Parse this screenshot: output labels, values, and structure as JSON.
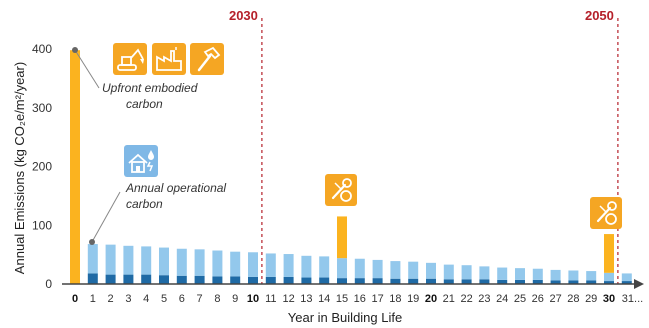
{
  "chart_data": {
    "type": "bar",
    "ylabel": "Annual Emissions (kg CO₂e/m²/year)",
    "xlabel": "Year in Building Life",
    "ylim": [
      0,
      420
    ],
    "yticks": [
      0,
      100,
      200,
      300,
      400
    ],
    "grid": false,
    "categories": [
      "0",
      "1",
      "2",
      "3",
      "4",
      "5",
      "6",
      "7",
      "8",
      "9",
      "10",
      "11",
      "12",
      "13",
      "14",
      "15",
      "16",
      "17",
      "18",
      "19",
      "20",
      "21",
      "22",
      "23",
      "24",
      "25",
      "26",
      "27",
      "28",
      "29",
      "30",
      "31..."
    ],
    "bold_categories": [
      "0",
      "10",
      "20",
      "30"
    ],
    "series": [
      {
        "values": [
          0,
          18,
          16,
          16,
          16,
          15,
          14,
          14,
          13,
          13,
          12,
          12,
          12,
          11,
          11,
          10,
          10,
          10,
          9,
          9,
          9,
          8,
          8,
          8,
          7,
          7,
          7,
          6,
          6,
          6,
          5,
          5
        ]
      },
      {
        "values": [
          0,
          50,
          51,
          49,
          48,
          47,
          46,
          45,
          44,
          42,
          42,
          40,
          39,
          37,
          36,
          34,
          33,
          31,
          30,
          29,
          27,
          25,
          24,
          22,
          21,
          20,
          19,
          18,
          17,
          16,
          14,
          13
        ]
      },
      {
        "values": [
          398,
          0,
          0,
          0,
          0,
          0,
          0,
          0,
          0,
          0,
          0,
          0,
          0,
          0,
          0,
          71,
          0,
          0,
          0,
          0,
          0,
          0,
          0,
          0,
          0,
          0,
          0,
          0,
          0,
          0,
          66,
          0
        ]
      }
    ],
    "colors": {
      "operational_dark": "#1f6aa5",
      "operational_light": "#93c8ec",
      "embodied": "#fbb31f",
      "milestone": "#b5202a",
      "icon_box": "#f5a623",
      "operational_icon_box": "#7fb8e6"
    },
    "milestones": [
      {
        "label": "2030",
        "year": 10.5
      },
      {
        "label": "2050",
        "year": 30.5
      }
    ],
    "annotations": [
      {
        "lines": [
          "Upfront embodied",
          "carbon"
        ],
        "year": 0,
        "value": 395
      },
      {
        "lines": [
          "Annual operational",
          "carbon"
        ],
        "year": 1,
        "value": 68
      }
    ],
    "icons": {
      "embodied": [
        "excavator-icon",
        "factory-icon",
        "hammer-icon"
      ],
      "operational": "house-weather-icon",
      "replacement": "wrench-screwdriver-icon"
    }
  }
}
